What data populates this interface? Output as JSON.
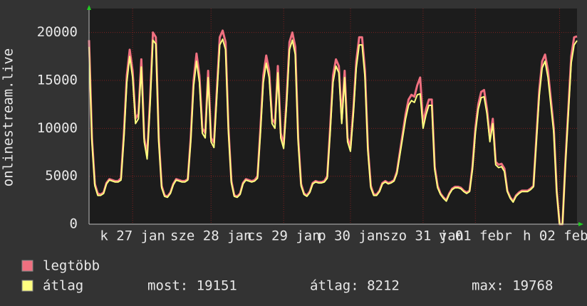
{
  "chart_data": {
    "type": "line",
    "ylabel": "onlinestream.live",
    "xlim": [
      0,
      168
    ],
    "ylim": [
      0,
      22500
    ],
    "yticks": [
      0,
      5000,
      10000,
      15000,
      20000
    ],
    "xticks": [
      {
        "value": 15,
        "label": "k 27 jan"
      },
      {
        "value": 42,
        "label": "sze 28 jan"
      },
      {
        "value": 67,
        "label": "cs 29 jan"
      },
      {
        "value": 90,
        "label": "p 30 jan"
      },
      {
        "value": 115,
        "label": "szo 31 jan"
      },
      {
        "value": 133,
        "label": "v 01 febr"
      },
      {
        "value": 162,
        "label": "h 02 febr"
      }
    ],
    "grid": true,
    "x": [
      0,
      1,
      2,
      3,
      4,
      5,
      6,
      7,
      8,
      9,
      10,
      11,
      12,
      13,
      14,
      15,
      16,
      17,
      18,
      19,
      20,
      21,
      22,
      23,
      24,
      25,
      26,
      27,
      28,
      29,
      30,
      31,
      32,
      33,
      34,
      35,
      36,
      37,
      38,
      39,
      40,
      41,
      42,
      43,
      44,
      45,
      46,
      47,
      48,
      49,
      50,
      51,
      52,
      53,
      54,
      55,
      56,
      57,
      58,
      59,
      60,
      61,
      62,
      63,
      64,
      65,
      66,
      67,
      68,
      69,
      70,
      71,
      72,
      73,
      74,
      75,
      76,
      77,
      78,
      79,
      80,
      81,
      82,
      83,
      84,
      85,
      86,
      87,
      88,
      89,
      90,
      91,
      92,
      93,
      94,
      95,
      96,
      97,
      98,
      99,
      100,
      101,
      102,
      103,
      104,
      105,
      106,
      107,
      108,
      109,
      110,
      111,
      112,
      113,
      114,
      115,
      116,
      117,
      118,
      119,
      120,
      121,
      122,
      123,
      124,
      125,
      126,
      127,
      128,
      129,
      130,
      131,
      132,
      133,
      134,
      135,
      136,
      137,
      138,
      139,
      140,
      141,
      142,
      143,
      144,
      145,
      146,
      147,
      148,
      149,
      150,
      151,
      152,
      153,
      154,
      155,
      156,
      157,
      158,
      159,
      160,
      161,
      162,
      163,
      164,
      165,
      166,
      167,
      168
    ],
    "series": [
      {
        "name": "legtöbb",
        "color": "#f07080",
        "values": [
          19200,
          9000,
          4200,
          3200,
          3100,
          3300,
          4300,
          4700,
          4600,
          4500,
          4500,
          4800,
          9500,
          15500,
          18200,
          16000,
          11000,
          11500,
          17200,
          9000,
          7200,
          13000,
          20000,
          19500,
          9000,
          4000,
          3000,
          2900,
          3300,
          4200,
          4700,
          4600,
          4500,
          4500,
          4700,
          9000,
          15000,
          17800,
          15500,
          10000,
          9500,
          16000,
          9000,
          8500,
          14000,
          19500,
          20200,
          19000,
          10000,
          4500,
          3000,
          2900,
          3200,
          4300,
          4700,
          4600,
          4500,
          4600,
          5000,
          10000,
          15500,
          17600,
          16000,
          11000,
          10500,
          16500,
          9500,
          8300,
          13000,
          19000,
          20000,
          18500,
          9000,
          4200,
          3200,
          3000,
          3400,
          4300,
          4500,
          4400,
          4400,
          4500,
          5000,
          10000,
          15500,
          17200,
          16500,
          11000,
          16000,
          9000,
          8000,
          12000,
          17000,
          19500,
          19500,
          16000,
          8000,
          4000,
          3100,
          3100,
          3500,
          4300,
          4500,
          4300,
          4400,
          4600,
          5500,
          7500,
          9500,
          11500,
          13000,
          13500,
          13300,
          14500,
          15300,
          10500,
          12000,
          13000,
          13000,
          6000,
          4000,
          3200,
          2800,
          2500,
          3200,
          3700,
          3900,
          3900,
          3800,
          3500,
          3300,
          3500,
          6000,
          10000,
          12500,
          13800,
          14000,
          12000,
          9000,
          11000,
          6500,
          6200,
          6300,
          5800,
          3500,
          2800,
          2400,
          3000,
          3300,
          3500,
          3500,
          3500,
          3700,
          4000,
          9000,
          14000,
          17000,
          17700,
          16000,
          13000,
          10000,
          3500,
          0,
          0,
          6500,
          12000,
          17500,
          19500,
          19600
        ]
      },
      {
        "name": "átlag",
        "color": "#ffff80",
        "values": [
          18500,
          8600,
          4000,
          3000,
          3000,
          3200,
          4200,
          4600,
          4500,
          4400,
          4400,
          4600,
          9000,
          14800,
          17500,
          15300,
          10500,
          11000,
          16400,
          8600,
          6800,
          12400,
          19200,
          18800,
          8600,
          3800,
          2900,
          2800,
          3200,
          4100,
          4600,
          4500,
          4400,
          4400,
          4600,
          8600,
          14400,
          17000,
          14800,
          9500,
          9000,
          15300,
          8600,
          8000,
          13400,
          18700,
          19300,
          18200,
          9600,
          4300,
          2900,
          2800,
          3100,
          4200,
          4600,
          4500,
          4400,
          4500,
          4800,
          9500,
          14800,
          16800,
          15300,
          10500,
          10000,
          15800,
          9000,
          7900,
          12400,
          18200,
          19200,
          17700,
          8600,
          4000,
          3100,
          2900,
          3300,
          4200,
          4400,
          4300,
          4300,
          4400,
          4800,
          9500,
          14800,
          16500,
          15800,
          10500,
          15300,
          8600,
          7600,
          11500,
          16300,
          18700,
          18700,
          15300,
          7600,
          3800,
          3000,
          3000,
          3400,
          4200,
          4400,
          4200,
          4300,
          4500,
          5300,
          7200,
          9100,
          11000,
          12400,
          12900,
          12700,
          13500,
          13600,
          10000,
          11400,
          12400,
          12400,
          5700,
          3800,
          3100,
          2700,
          2400,
          3100,
          3600,
          3800,
          3800,
          3700,
          3400,
          3200,
          3400,
          5700,
          9500,
          12000,
          13200,
          13300,
          11500,
          8600,
          10500,
          6200,
          5900,
          6000,
          5500,
          3400,
          2700,
          2300,
          2900,
          3200,
          3400,
          3400,
          3400,
          3600,
          3900,
          8600,
          13400,
          16300,
          17000,
          15300,
          12400,
          9500,
          3300,
          0,
          0,
          6200,
          11500,
          16800,
          18700,
          19151
        ]
      }
    ],
    "legend_stats": [
      "most: 19151",
      "átlag: 8212",
      "max: 19768"
    ]
  }
}
